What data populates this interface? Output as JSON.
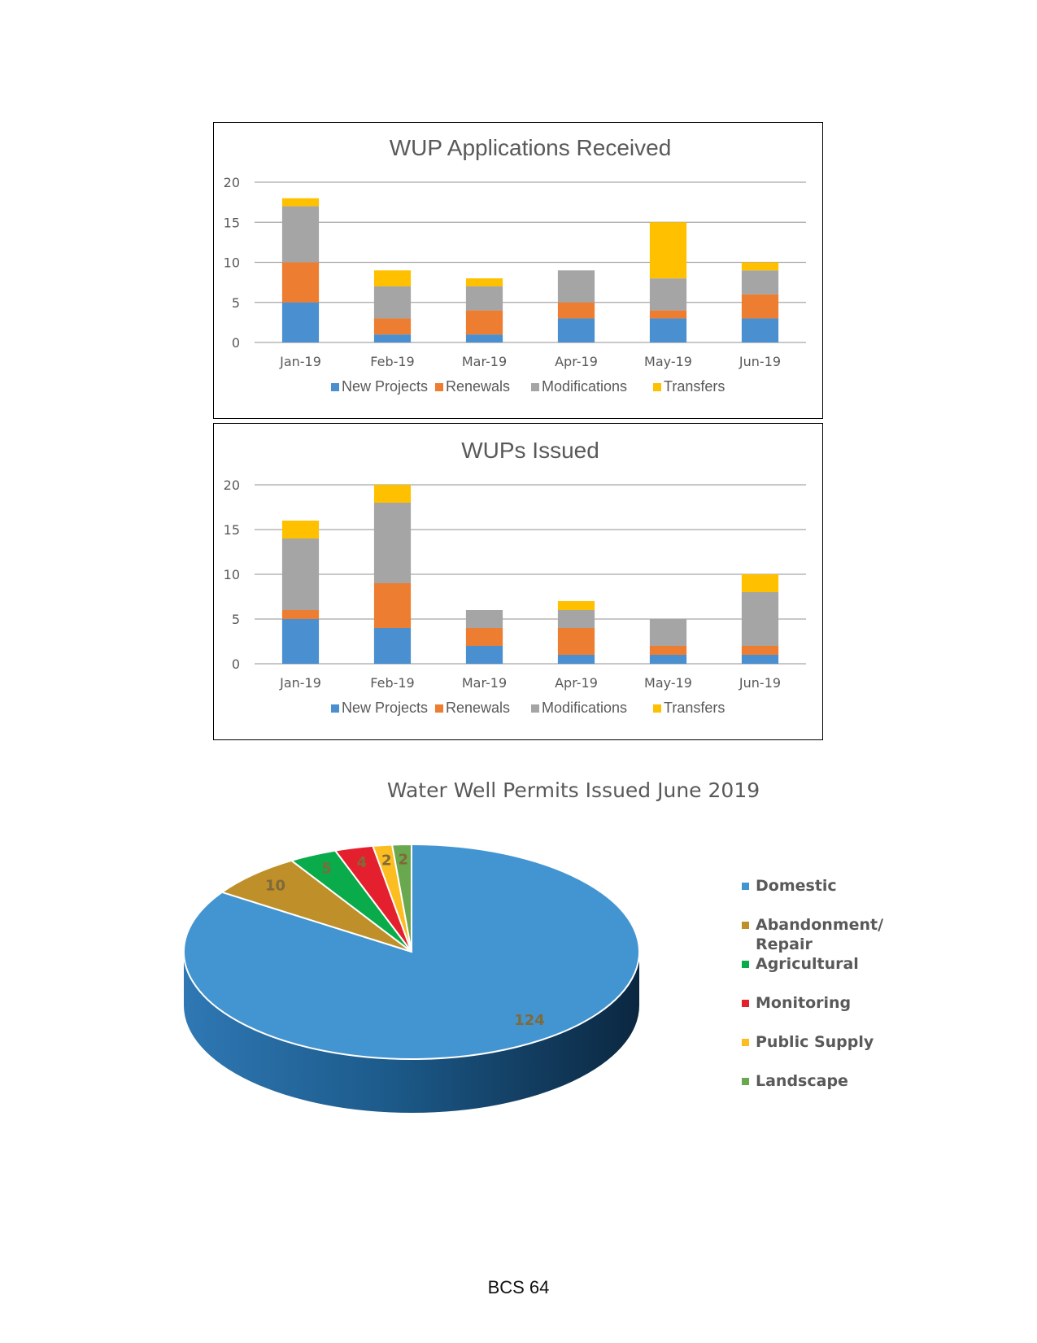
{
  "chart_data": [
    {
      "type": "bar",
      "stacked": true,
      "title": "WUP Applications Received",
      "categories": [
        "Jan-19",
        "Feb-19",
        "Mar-19",
        "Apr-19",
        "May-19",
        "Jun-19"
      ],
      "ylim": [
        0,
        20
      ],
      "yticks": [
        "0",
        "5",
        "10",
        "15",
        "20"
      ],
      "grid": true,
      "legend_position": "bottom",
      "series": [
        {
          "name": "New Projects",
          "color": "#4a8fcf",
          "values": [
            5,
            1,
            1,
            3,
            3,
            3
          ]
        },
        {
          "name": "Renewals",
          "color": "#ed7d31",
          "values": [
            5,
            2,
            3,
            2,
            1,
            3
          ]
        },
        {
          "name": "Modifications",
          "color": "#a5a5a5",
          "values": [
            7,
            4,
            3,
            4,
            4,
            3
          ]
        },
        {
          "name": "Transfers",
          "color": "#ffc000",
          "values": [
            1,
            2,
            1,
            0,
            7,
            1
          ]
        }
      ]
    },
    {
      "type": "bar",
      "stacked": true,
      "title": "WUPs Issued",
      "categories": [
        "Jan-19",
        "Feb-19",
        "Mar-19",
        "Apr-19",
        "May-19",
        "Jun-19"
      ],
      "ylim": [
        0,
        20
      ],
      "yticks": [
        "0",
        "5",
        "10",
        "15",
        "20"
      ],
      "grid": true,
      "legend_position": "bottom",
      "series": [
        {
          "name": "New Projects",
          "color": "#4a8fcf",
          "values": [
            5,
            4,
            2,
            1,
            1,
            1
          ]
        },
        {
          "name": "Renewals",
          "color": "#ed7d31",
          "values": [
            1,
            5,
            2,
            3,
            1,
            1
          ]
        },
        {
          "name": "Modifications",
          "color": "#a5a5a5",
          "values": [
            8,
            9,
            2,
            2,
            3,
            6
          ]
        },
        {
          "name": "Transfers",
          "color": "#ffc000",
          "values": [
            2,
            2,
            0,
            1,
            0,
            2
          ]
        }
      ]
    },
    {
      "type": "pie",
      "title": "Water Well Permits Issued June 2019",
      "legend_position": "right",
      "slices": [
        {
          "label": "Domestic",
          "value": 124,
          "color": "#4395d1"
        },
        {
          "label": "Abandonment/ Repair",
          "value": 10,
          "color": "#bf8f2a"
        },
        {
          "label": "Agricultural",
          "value": 5,
          "color": "#0aab4a"
        },
        {
          "label": "Monitoring",
          "value": 4,
          "color": "#e5202e"
        },
        {
          "label": "Public Supply",
          "value": 2,
          "color": "#fcbd21"
        },
        {
          "label": "Landscape",
          "value": 2,
          "color": "#6aa84f"
        }
      ]
    }
  ],
  "footer": {
    "text": "BCS 64"
  }
}
